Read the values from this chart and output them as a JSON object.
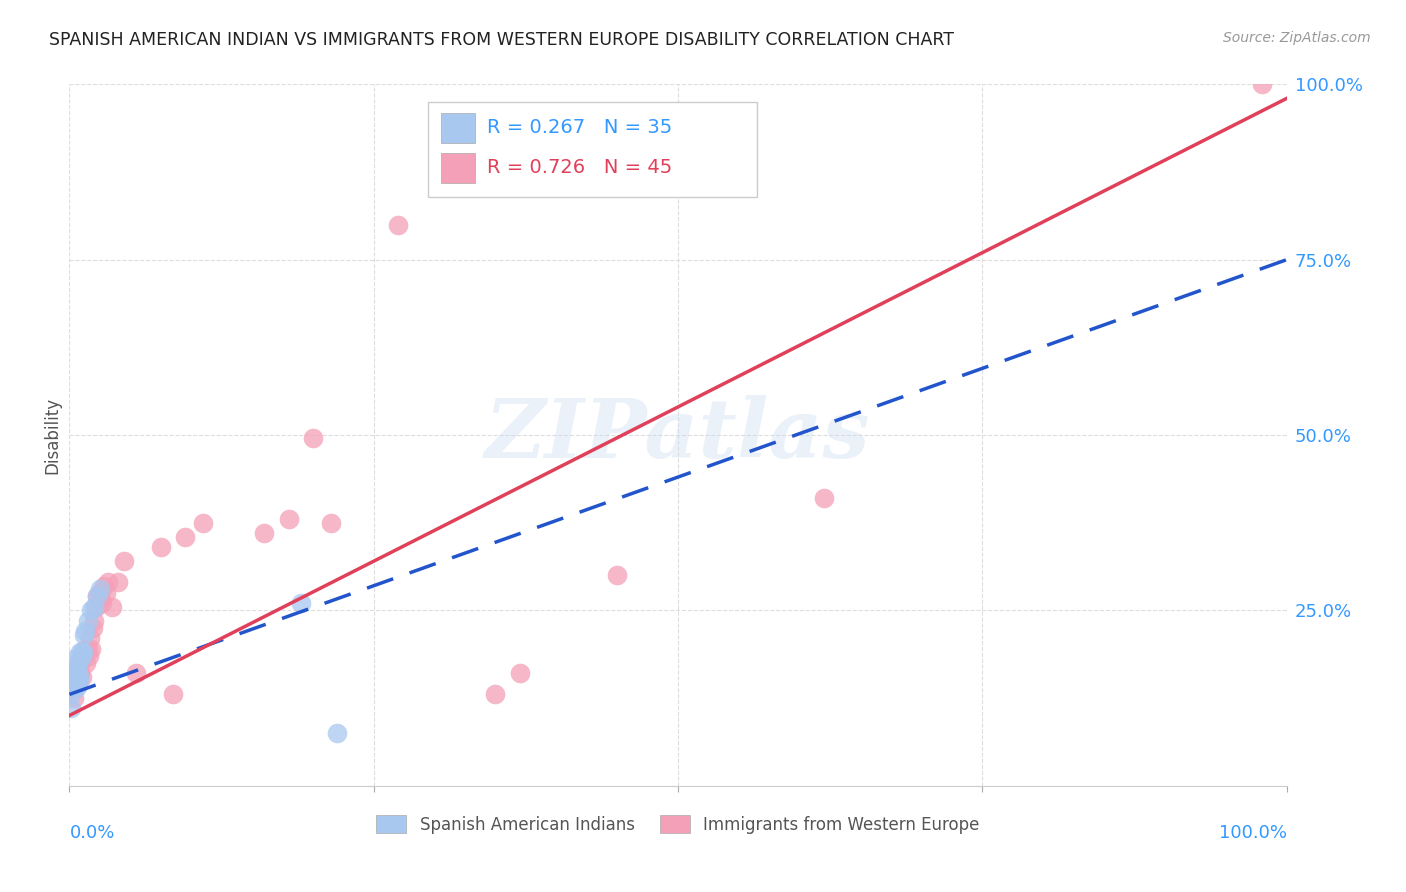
{
  "title": "SPANISH AMERICAN INDIAN VS IMMIGRANTS FROM WESTERN EUROPE DISABILITY CORRELATION CHART",
  "source": "Source: ZipAtlas.com",
  "ylabel": "Disability",
  "watermark": "ZIPatlas",
  "series1_label": "Spanish American Indians",
  "series2_label": "Immigrants from Western Europe",
  "series1_R": "0.267",
  "series1_N": "35",
  "series2_R": "0.726",
  "series2_N": "45",
  "series1_color": "#A8C8F0",
  "series2_color": "#F4A0B8",
  "series1_line_color": "#2255CC",
  "series2_line_color": "#E0405A",
  "xlim": [
    0,
    1
  ],
  "ylim": [
    0,
    1
  ],
  "yticks": [
    0.0,
    0.25,
    0.5,
    0.75,
    1.0
  ],
  "ytick_labels": [
    "",
    "25.0%",
    "50.0%",
    "75.0%",
    "100.0%"
  ],
  "background_color": "#ffffff",
  "grid_color": "#dddddd",
  "series1_line_x0": 0.0,
  "series1_line_y0": 0.13,
  "series1_line_x1": 1.0,
  "series1_line_y1": 0.75,
  "series2_line_x0": 0.0,
  "series2_line_y0": 0.1,
  "series2_line_x1": 1.0,
  "series2_line_y1": 0.98,
  "series1_x": [
    0.001,
    0.001,
    0.002,
    0.002,
    0.003,
    0.003,
    0.003,
    0.004,
    0.004,
    0.005,
    0.005,
    0.005,
    0.006,
    0.006,
    0.006,
    0.007,
    0.007,
    0.007,
    0.008,
    0.008,
    0.008,
    0.009,
    0.009,
    0.01,
    0.01,
    0.011,
    0.012,
    0.013,
    0.015,
    0.018,
    0.02,
    0.023,
    0.025,
    0.19,
    0.22
  ],
  "series1_y": [
    0.11,
    0.13,
    0.145,
    0.155,
    0.14,
    0.15,
    0.16,
    0.155,
    0.18,
    0.145,
    0.155,
    0.16,
    0.14,
    0.155,
    0.17,
    0.145,
    0.155,
    0.16,
    0.15,
    0.155,
    0.18,
    0.19,
    0.18,
    0.185,
    0.19,
    0.19,
    0.215,
    0.22,
    0.235,
    0.25,
    0.255,
    0.27,
    0.28,
    0.26,
    0.075
  ],
  "series2_x": [
    0.003,
    0.004,
    0.005,
    0.006,
    0.007,
    0.008,
    0.009,
    0.01,
    0.01,
    0.011,
    0.012,
    0.013,
    0.014,
    0.015,
    0.016,
    0.017,
    0.018,
    0.019,
    0.02,
    0.022,
    0.023,
    0.025,
    0.026,
    0.027,
    0.028,
    0.03,
    0.032,
    0.035,
    0.04,
    0.045,
    0.055,
    0.075,
    0.085,
    0.095,
    0.11,
    0.16,
    0.18,
    0.2,
    0.215,
    0.27,
    0.35,
    0.37,
    0.45,
    0.62,
    0.98
  ],
  "series2_y": [
    0.14,
    0.125,
    0.16,
    0.155,
    0.17,
    0.17,
    0.16,
    0.18,
    0.155,
    0.185,
    0.19,
    0.195,
    0.175,
    0.195,
    0.185,
    0.21,
    0.195,
    0.225,
    0.235,
    0.255,
    0.27,
    0.275,
    0.265,
    0.26,
    0.285,
    0.275,
    0.29,
    0.255,
    0.29,
    0.32,
    0.16,
    0.34,
    0.13,
    0.355,
    0.375,
    0.36,
    0.38,
    0.495,
    0.375,
    0.8,
    0.13,
    0.16,
    0.3,
    0.41,
    1.0
  ]
}
